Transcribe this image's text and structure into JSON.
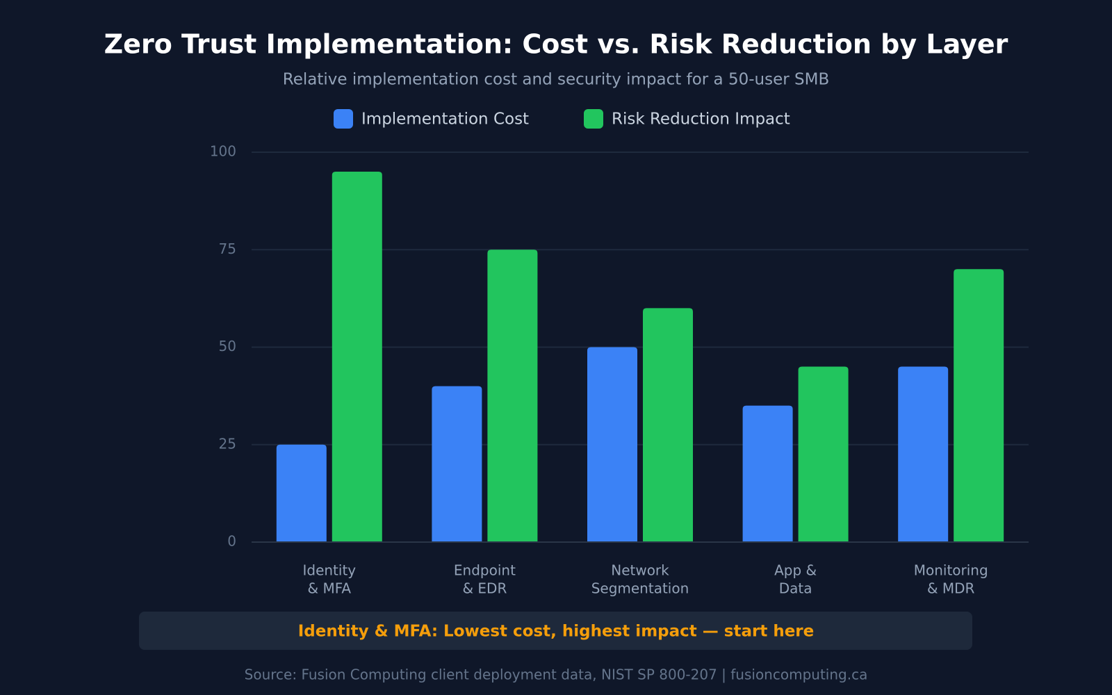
{
  "chart_data": {
    "type": "bar",
    "title": "Zero Trust Implementation: Cost vs. Risk Reduction by Layer",
    "subtitle": "Relative implementation cost and security impact for a 50-user SMB",
    "categories": [
      [
        "Identity",
        "& MFA"
      ],
      [
        "Endpoint",
        "& EDR"
      ],
      [
        "Network",
        "Segmentation"
      ],
      [
        "App &",
        "Data"
      ],
      [
        "Monitoring",
        "& MDR"
      ]
    ],
    "series": [
      {
        "name": "Implementation Cost",
        "color": "#3b82f6",
        "values": [
          25,
          40,
          50,
          35,
          45
        ]
      },
      {
        "name": "Risk Reduction Impact",
        "color": "#22c55e",
        "values": [
          95,
          75,
          60,
          45,
          70
        ]
      }
    ],
    "ylim": [
      0,
      100
    ],
    "yticks": [
      0,
      25,
      50,
      75,
      100
    ],
    "grid": true,
    "legend": "top",
    "annotation": "Identity & MFA: Lowest cost, highest impact — start here",
    "source": "Source: Fusion Computing client deployment data, NIST SP 800-207 | fusioncomputing.ca"
  }
}
